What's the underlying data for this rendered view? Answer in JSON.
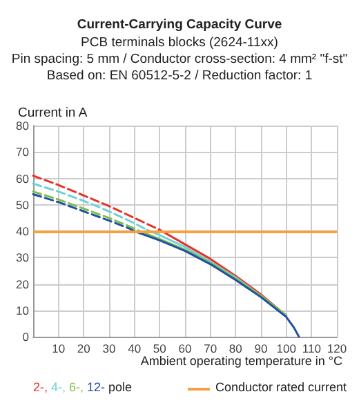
{
  "chart_data": {
    "type": "line",
    "title": "Current-Carrying Capacity Curve",
    "subtitle": "PCB terminals blocks (2624-11xx)\nPin spacing: 5 mm / Conductor cross-section: 4 mm² \"f-st\"\nBased on: EN 60512-5-2 / Reduction factor: 1",
    "xlabel": "Ambient operating temperature in °C",
    "ylabel": "Current in A",
    "legend_title": "pole",
    "xlim": [
      0,
      120
    ],
    "xticks": [
      10,
      20,
      30,
      40,
      50,
      60,
      70,
      80,
      90,
      100,
      110,
      120
    ],
    "ylim": [
      0,
      80
    ],
    "yticks": [
      0,
      10,
      20,
      30,
      40,
      50,
      60,
      70,
      80
    ],
    "grid": true,
    "legend": "bottom",
    "marker": "none",
    "ref_lines": [
      {
        "axis": "y",
        "value": 40,
        "label": "Conductor rated current",
        "color": "#f7a040"
      }
    ],
    "series": [
      {
        "name": "2-,",
        "color": "#e8312a",
        "line_style": "dashed",
        "x": [
          0,
          10,
          20,
          30,
          40,
          50
        ],
        "values": [
          61,
          57.5,
          53.5,
          49.5,
          45,
          40.5
        ]
      },
      {
        "name": "4-,",
        "color": "#6fd0d8",
        "line_style": "dashed",
        "x": [
          0,
          10,
          20,
          30,
          40,
          45
        ],
        "values": [
          58,
          55,
          51.5,
          47.5,
          43,
          40.5
        ]
      },
      {
        "name": "6-,",
        "color": "#7cc04a",
        "line_style": "dashed",
        "x": [
          0,
          10,
          20,
          30,
          40,
          42
        ],
        "values": [
          55,
          52,
          48.5,
          45,
          41,
          40
        ]
      },
      {
        "name": "12-",
        "color": "#1f4fa8",
        "line_style": "dashed",
        "x": [
          0,
          10,
          20,
          30,
          38,
          40
        ],
        "values": [
          54,
          51,
          47.5,
          44,
          41,
          40
        ]
      },
      {
        "color": "#e8312a",
        "line_style": "solid",
        "x": [
          50,
          60,
          70,
          80,
          90,
          100
        ],
        "values": [
          40.5,
          35,
          29.5,
          23,
          16,
          8
        ]
      },
      {
        "color": "#6fd0d8",
        "line_style": "solid",
        "x": [
          45,
          50,
          60,
          70,
          80,
          90,
          100
        ],
        "values": [
          40.5,
          38.5,
          34,
          28.5,
          22.5,
          15.5,
          8
        ]
      },
      {
        "color": "#7cc04a",
        "line_style": "solid",
        "x": [
          42,
          50,
          60,
          70,
          80,
          90,
          100
        ],
        "values": [
          40,
          37,
          33,
          28,
          22,
          15.5,
          8
        ]
      },
      {
        "color": "#1f4fa8",
        "line_style": "solid",
        "x": [
          40,
          50,
          60,
          70,
          80,
          90,
          100,
          103,
          105
        ],
        "values": [
          40,
          36.5,
          32.5,
          27.5,
          21.5,
          15,
          7.5,
          3.5,
          0
        ]
      }
    ]
  }
}
